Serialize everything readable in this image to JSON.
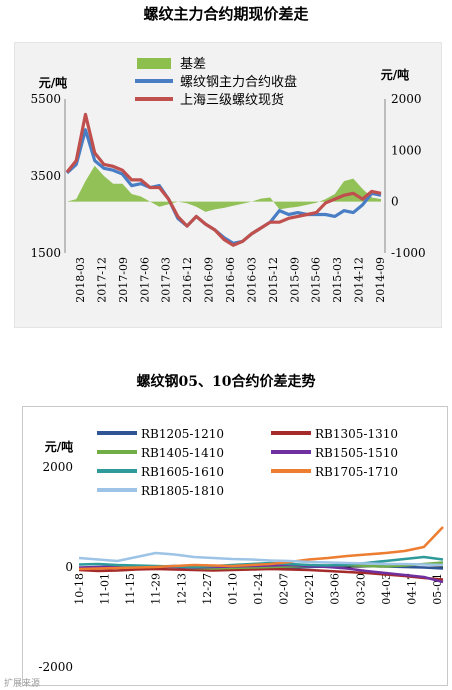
{
  "chart_data": [
    {
      "type": "line",
      "title": "螺纹主力合约期现价差走",
      "left_axis_label": "元/吨",
      "right_axis_label": "元/吨",
      "left_ylim": [
        1500,
        5500
      ],
      "left_ticks": [
        "1500",
        "3500",
        "5500"
      ],
      "right_ylim": [
        -1000,
        2000
      ],
      "right_ticks": [
        "-1000",
        "0",
        "1000",
        "2000"
      ],
      "x_ticks": [
        "2018-03",
        "2017-12",
        "2017-09",
        "2017-06",
        "2017-03",
        "2016-12",
        "2016-09",
        "2016-06",
        "2016-03",
        "2015-12",
        "2015-09",
        "2015-06",
        "2015-03",
        "2014-12",
        "2014-09"
      ],
      "legend_placement": "top",
      "series": [
        {
          "name": "基差",
          "type": "area",
          "axis": "right",
          "color": "#8cbf4e",
          "values": [
            0,
            50,
            400,
            700,
            500,
            350,
            350,
            150,
            100,
            0,
            -100,
            -50,
            0,
            -30,
            -100,
            -200,
            -150,
            -120,
            -80,
            -40,
            0,
            60,
            80,
            -150,
            -120,
            -100,
            -60,
            -20,
            50,
            150,
            400,
            450,
            250,
            80,
            50
          ]
        },
        {
          "name": "螺纹钢主力合约收盘",
          "type": "line",
          "axis": "left",
          "color": "#4a7ec4",
          "values": [
            3580,
            3800,
            4700,
            3900,
            3700,
            3650,
            3550,
            3250,
            3300,
            3200,
            3250,
            2900,
            2400,
            2200,
            2450,
            2250,
            2100,
            1900,
            1750,
            1800,
            2000,
            2150,
            2300,
            2600,
            2500,
            2550,
            2500,
            2500,
            2500,
            2450,
            2600,
            2550,
            2750,
            3050,
            3000
          ]
        },
        {
          "name": "上海三级螺纹现货",
          "type": "line",
          "axis": "left",
          "color": "#c0504d",
          "values": [
            3600,
            3900,
            5100,
            4100,
            3800,
            3750,
            3650,
            3400,
            3400,
            3200,
            3200,
            2900,
            2450,
            2200,
            2450,
            2250,
            2100,
            1850,
            1700,
            1800,
            2000,
            2150,
            2300,
            2300,
            2400,
            2450,
            2500,
            2550,
            2800,
            2900,
            3000,
            3050,
            2900,
            3100,
            3050
          ]
        }
      ]
    },
    {
      "type": "line",
      "title": "螺纹钢05、10合约价差走势",
      "ylabel": "元/吨",
      "ylim": [
        -2000,
        2000
      ],
      "y_ticks": [
        "2000",
        "0",
        "-2000"
      ],
      "x_ticks": [
        "10-18",
        "11-01",
        "11-15",
        "11-29",
        "12-13",
        "12-27",
        "01-10",
        "01-24",
        "02-07",
        "02-21",
        "03-06",
        "03-20",
        "04-03",
        "04-17",
        "05-01"
      ],
      "legend_placement": "top-left",
      "series": [
        {
          "name": "RB1205-1210",
          "color": "#2f5597",
          "values": [
            -20,
            -30,
            -10,
            0,
            10,
            20,
            0,
            -10,
            -20,
            -30,
            -20,
            -10,
            0,
            10,
            30,
            20,
            10,
            0,
            -10,
            -30
          ]
        },
        {
          "name": "RB1305-1310",
          "color": "#a52a2a",
          "values": [
            -60,
            -80,
            -70,
            -50,
            -40,
            -50,
            -60,
            -70,
            -60,
            -50,
            -40,
            -50,
            -60,
            -80,
            -100,
            -120,
            -150,
            -180,
            -220,
            -250
          ]
        },
        {
          "name": "RB1405-1410",
          "color": "#70ad47",
          "values": [
            -30,
            -20,
            -10,
            0,
            10,
            0,
            -20,
            -30,
            -20,
            -10,
            0,
            10,
            20,
            30,
            40,
            20,
            10,
            30,
            60,
            90
          ]
        },
        {
          "name": "RB1505-1510",
          "color": "#7030a0",
          "values": [
            -10,
            0,
            10,
            20,
            10,
            0,
            -10,
            0,
            10,
            20,
            30,
            40,
            20,
            0,
            -30,
            -80,
            -120,
            -160,
            -200,
            -300
          ]
        },
        {
          "name": "RB1605-1610",
          "color": "#2e9a9a",
          "values": [
            50,
            60,
            40,
            30,
            20,
            10,
            0,
            20,
            40,
            60,
            80,
            60,
            40,
            30,
            50,
            80,
            120,
            160,
            200,
            150
          ]
        },
        {
          "name": "RB1705-1710",
          "color": "#ed7d31",
          "values": [
            -40,
            -30,
            -20,
            -10,
            0,
            20,
            40,
            30,
            20,
            40,
            60,
            100,
            150,
            180,
            220,
            250,
            280,
            320,
            400,
            800
          ]
        },
        {
          "name": "RB1805-1810",
          "color": "#9dc3e6",
          "values": [
            180,
            150,
            120,
            200,
            280,
            250,
            200,
            180,
            160,
            150,
            130,
            120,
            100,
            90,
            80,
            70,
            60,
            60,
            50,
            40
          ]
        }
      ]
    }
  ],
  "watermark": "扩展来源"
}
